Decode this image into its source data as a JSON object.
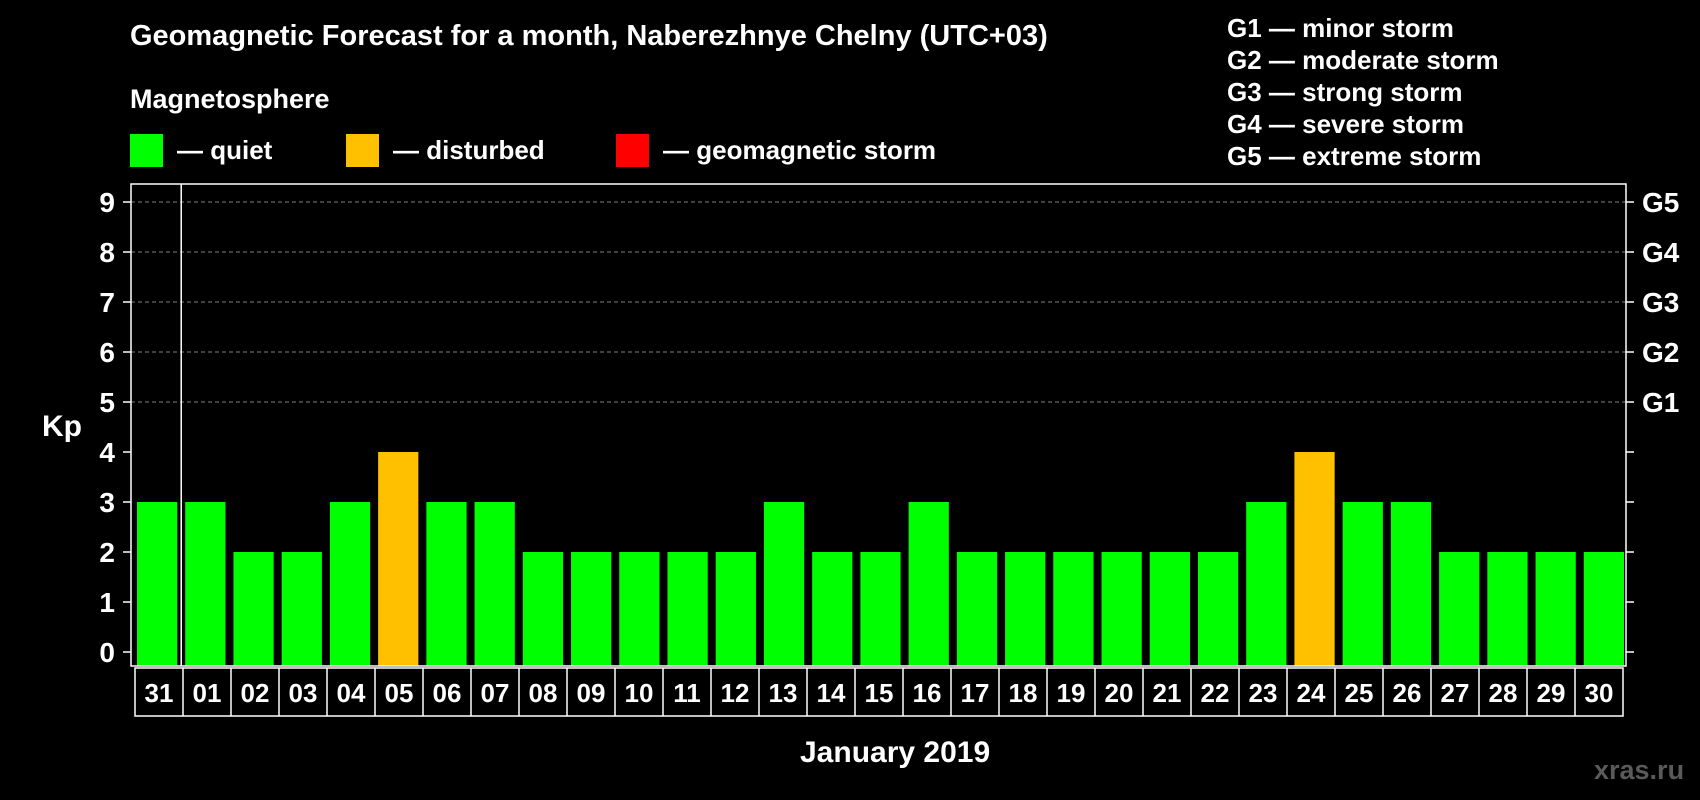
{
  "chart_data": {
    "type": "bar",
    "title": "Geomagnetic Forecast for a month, Naberezhnye Chelny (UTC+03)",
    "subtitle": "Magnetosphere",
    "ylabel": "Kp",
    "xlabel": "January 2019",
    "ylim": [
      0,
      9
    ],
    "yticks": [
      "0",
      "1",
      "2",
      "3",
      "4",
      "5",
      "6",
      "7",
      "8",
      "9"
    ],
    "grid": "dashed at Kp 5-9",
    "categories": [
      "31",
      "01",
      "02",
      "03",
      "04",
      "05",
      "06",
      "07",
      "08",
      "09",
      "10",
      "11",
      "12",
      "13",
      "14",
      "15",
      "16",
      "17",
      "18",
      "19",
      "20",
      "21",
      "22",
      "23",
      "24",
      "25",
      "26",
      "27",
      "28",
      "29",
      "30"
    ],
    "values": [
      3,
      3,
      2,
      2,
      3,
      4,
      3,
      3,
      2,
      2,
      2,
      2,
      2,
      3,
      2,
      2,
      3,
      2,
      2,
      2,
      2,
      2,
      2,
      3,
      4,
      3,
      3,
      2,
      2,
      2,
      2
    ],
    "status_legend": [
      {
        "label": "— quiet",
        "color": "#00ff00"
      },
      {
        "label": "— disturbed",
        "color": "#ffc000"
      },
      {
        "label": "— geomagnetic storm",
        "color": "#ff0000"
      }
    ],
    "storm_levels": [
      {
        "code": "G1",
        "kp": 5,
        "legend": "G1 — minor storm"
      },
      {
        "code": "G2",
        "kp": 6,
        "legend": "G2 — moderate storm"
      },
      {
        "code": "G3",
        "kp": 7,
        "legend": "G3 — strong storm"
      },
      {
        "code": "G4",
        "kp": 8,
        "legend": "G4 — severe storm"
      },
      {
        "code": "G5",
        "kp": 9,
        "legend": "G5 — extreme storm"
      }
    ]
  },
  "watermark": "xras.ru"
}
